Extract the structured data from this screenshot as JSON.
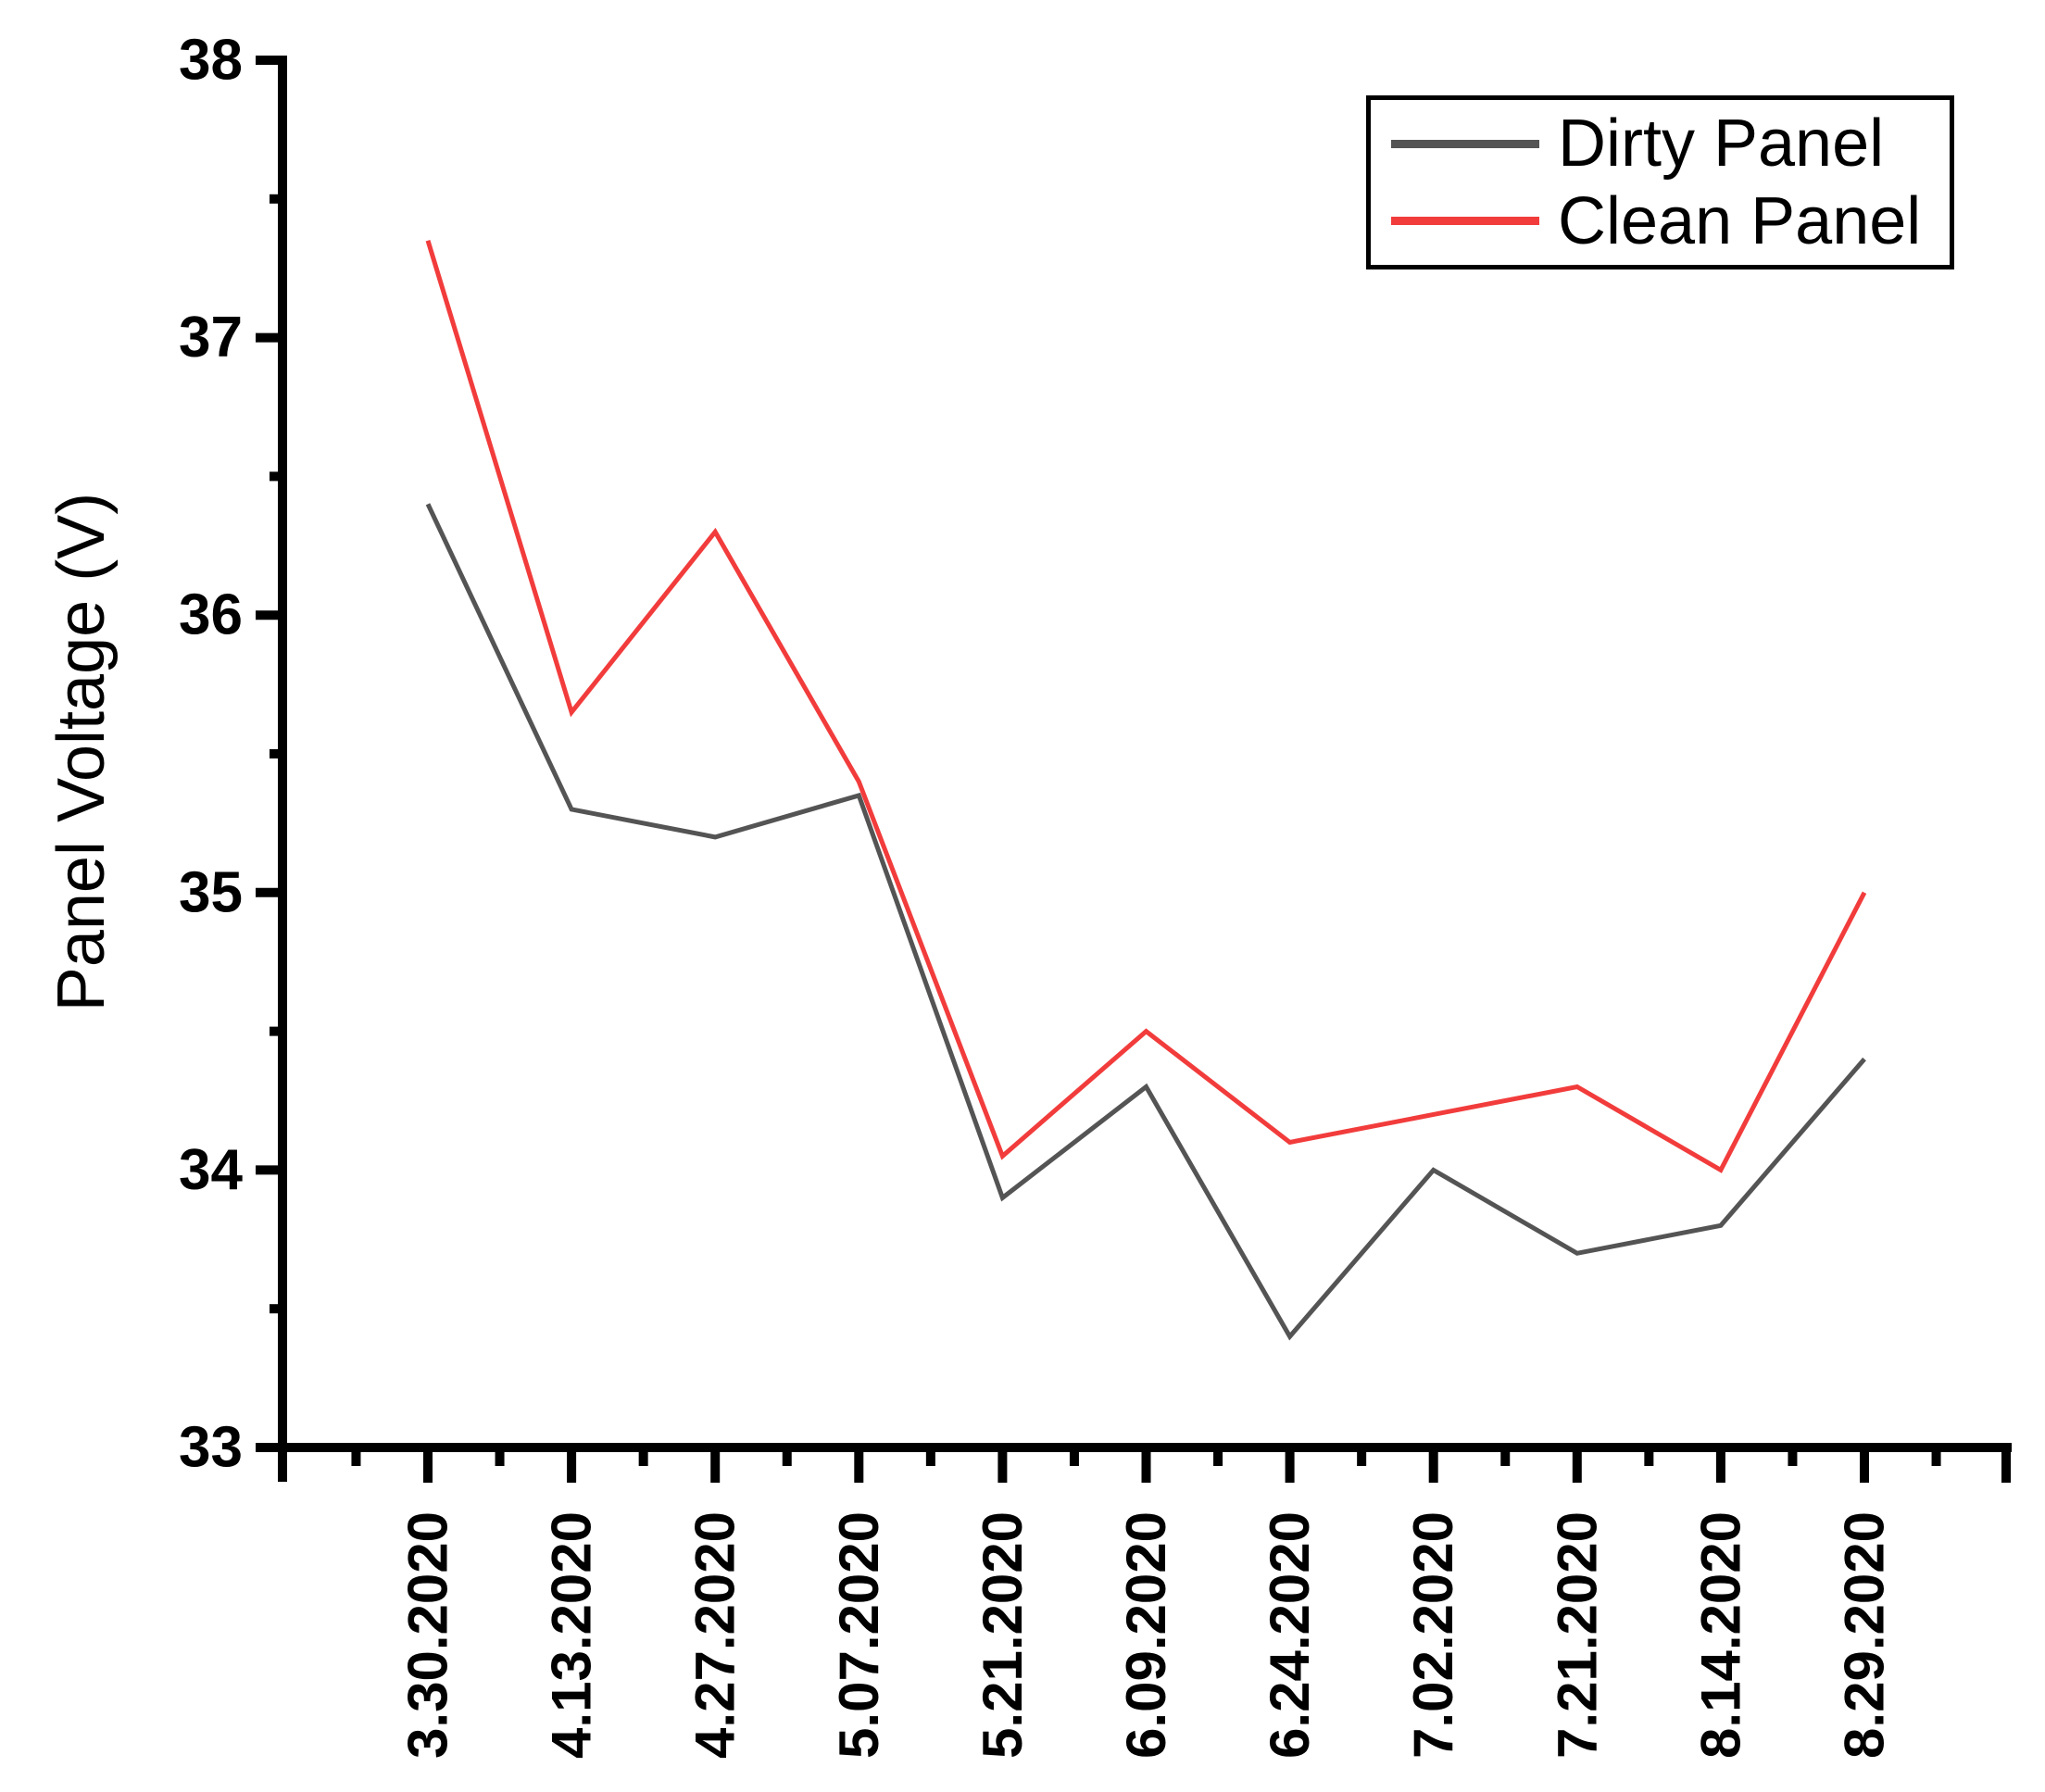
{
  "chart_data": {
    "type": "line",
    "title": "",
    "xlabel": "",
    "ylabel": "Panel Voltage (V)",
    "ylim": [
      33,
      38
    ],
    "ytick_interval": 1,
    "ytick_minor_interval": 0.5,
    "ytick_labels": [
      "33",
      "34",
      "35",
      "36",
      "37",
      "38"
    ],
    "xtick_rotation_degrees": 90,
    "grid": false,
    "axis_color": "#000000",
    "categories": [
      "3.30.2020",
      "4.13.2020",
      "4.27.2020",
      "5.07.2020",
      "5.21.2020",
      "6.09.2020",
      "6.24.2020",
      "7.02.2020",
      "7.21.2020",
      "8.14.2020",
      "8.29.2020"
    ],
    "series": [
      {
        "name": "Dirty Panel",
        "color": "#545454",
        "values": [
          36.4,
          35.3,
          35.2,
          35.35,
          33.9,
          34.3,
          33.4,
          34.0,
          33.7,
          33.8,
          34.4
        ]
      },
      {
        "name": "Clean Panel",
        "color": "#f23c3c",
        "values": [
          37.35,
          35.65,
          36.3,
          35.4,
          34.05,
          34.5,
          34.1,
          34.2,
          34.3,
          34.0,
          35.0
        ]
      }
    ],
    "legend_position": "top-right"
  },
  "legend": {
    "items": [
      {
        "label": "Dirty Panel",
        "color": "#545454"
      },
      {
        "label": "Clean Panel",
        "color": "#f23c3c"
      }
    ]
  }
}
